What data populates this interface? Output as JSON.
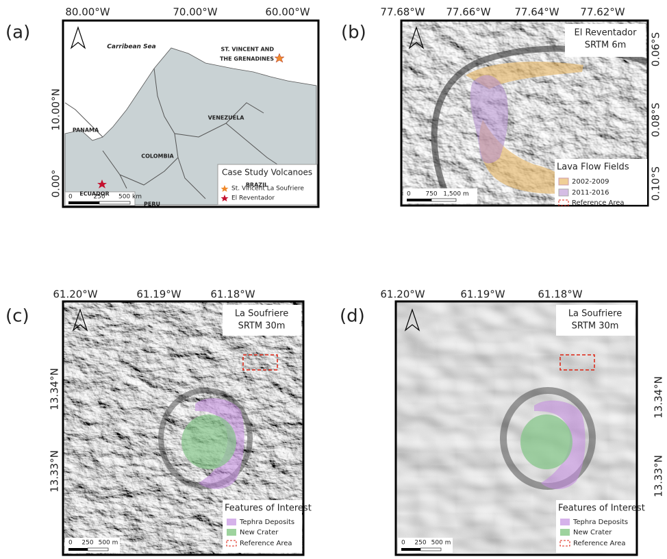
{
  "panels": [
    {
      "label": "(a)",
      "lon_labels": [
        "80.00°W",
        "70.00°W",
        "60.00°W"
      ],
      "lat_labels": [
        "10.00°N",
        "0.00°"
      ],
      "places": [
        "Carribean Sea",
        "ST. VINCENT AND",
        "THE GRENADINES",
        "PANAMA",
        "VENEZUELA",
        "COLOMBIA",
        "ECUADOR",
        "BRAZIL",
        "PERU"
      ],
      "legend": {
        "title": "Case Study Volcanoes",
        "items": [
          "St. Vincent La Soufriere",
          "El Reventador"
        ]
      },
      "scale": [
        "0",
        "250",
        "500 km"
      ]
    },
    {
      "label": "(b)",
      "lon_labels": [
        "77.68°W",
        "77.66°W",
        "77.64°W",
        "77.62°W"
      ],
      "lat_labels": [
        "0.06°S",
        "0.08°S",
        "0.10°S"
      ],
      "title": [
        "El Reventador",
        "SRTM 6m"
      ],
      "legend": {
        "title": "Lava Flow Fields",
        "items": [
          "2002-2009",
          "2011-2016",
          "Reference Area"
        ]
      },
      "scale": [
        "0",
        "750",
        "1,500 m"
      ]
    },
    {
      "label": "(c)",
      "lon_labels": [
        "61.20°W",
        "61.19°W",
        "61.18°W"
      ],
      "lat_labels": [
        "13.34°N",
        "13.33°N"
      ],
      "title": [
        "La Soufriere",
        "SRTM 30m"
      ],
      "legend": {
        "title": "Features of Interest",
        "items": [
          "Tephra Deposits",
          "New Crater",
          "Reference Area"
        ]
      },
      "scale": [
        "0",
        "250",
        "500 m"
      ]
    },
    {
      "label": "(d)",
      "lon_labels": [
        "61.20°W",
        "61.19°W",
        "61.18°W"
      ],
      "lat_labels": [
        "13.34°N",
        "13.33°N"
      ],
      "title": [
        "La Soufriere",
        "SRTM 30m"
      ],
      "legend": {
        "title": "Features of Interest",
        "items": [
          "Tephra Deposits",
          "New Crater",
          "Reference Area"
        ]
      },
      "scale": [
        "0",
        "250",
        "500 m"
      ]
    }
  ]
}
